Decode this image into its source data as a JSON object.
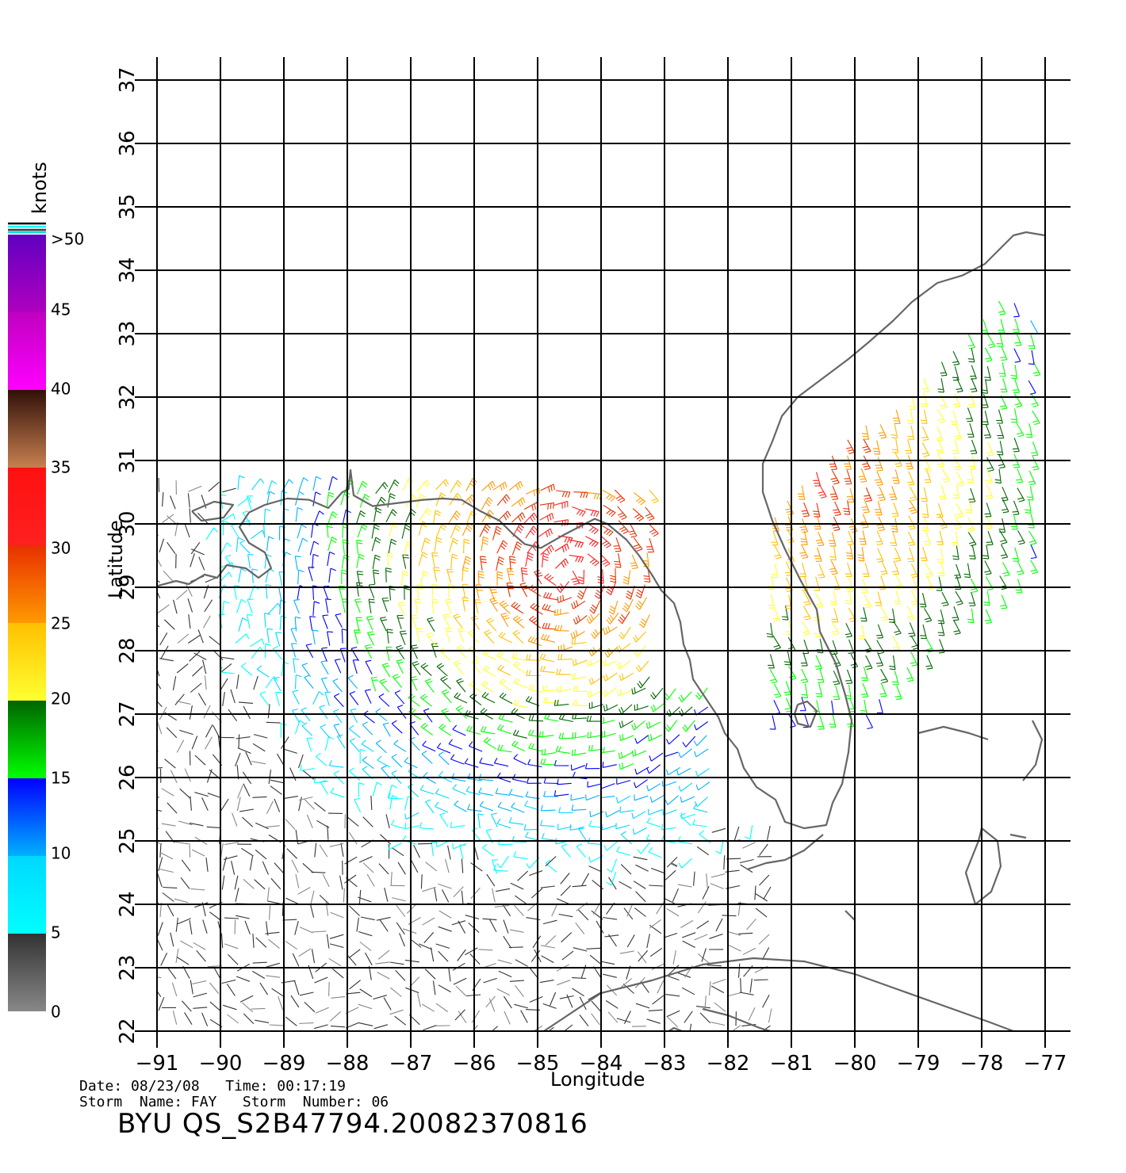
{
  "colorbar": {
    "unit": "knots",
    "labels": [
      "0",
      "5",
      "10",
      "15",
      "20",
      "25",
      "30",
      "35",
      "40",
      "45",
      ">50"
    ],
    "bands": [
      {
        "from": 0,
        "to": 5,
        "top": "#333333",
        "bottom": "#888888"
      },
      {
        "from": 5,
        "to": 10,
        "top": "#00d8ff",
        "bottom": "#00ffff"
      },
      {
        "from": 10,
        "to": 15,
        "top": "#0000ff",
        "bottom": "#00b0ff"
      },
      {
        "from": 15,
        "to": 20,
        "top": "#006400",
        "bottom": "#00ff00"
      },
      {
        "from": 20,
        "to": 25,
        "top": "#ffc000",
        "bottom": "#ffff30"
      },
      {
        "from": 25,
        "to": 30,
        "top": "#e83000",
        "bottom": "#ff9900"
      },
      {
        "from": 30,
        "to": 35,
        "top": "#ff1010",
        "bottom": "#ff2020"
      },
      {
        "from": 35,
        "to": 40,
        "top": "#301008",
        "bottom": "#c88050"
      },
      {
        "from": 40,
        "to": 45,
        "top": "#c000c0",
        "bottom": "#ff00ff"
      },
      {
        "from": 45,
        "to": 50,
        "top": "#6000c0",
        "bottom": "#b000c0"
      }
    ]
  },
  "map": {
    "lon_range": [
      -91,
      -77
    ],
    "lat_range": [
      22,
      37
    ],
    "lon_ticks": [
      "−91",
      "−90",
      "−89",
      "−88",
      "−87",
      "−86",
      "−85",
      "−84",
      "−83",
      "−82",
      "−81",
      "−80",
      "−79",
      "−78",
      "−77"
    ],
    "lat_ticks": [
      "22",
      "23",
      "24",
      "25",
      "26",
      "27",
      "28",
      "29",
      "30",
      "31",
      "32",
      "33",
      "34",
      "35",
      "36",
      "37"
    ],
    "xlabel": "Longitude",
    "ylabel": "Latitude",
    "grid": true,
    "coast_color": "#666666"
  },
  "footer": {
    "line1": "Date: 08/23/08   Time: 00:17:19",
    "line2": "Storm  Name: FAY   Storm  Number: 06",
    "title": "BYU  QS_S2B47794.20082370816"
  }
}
